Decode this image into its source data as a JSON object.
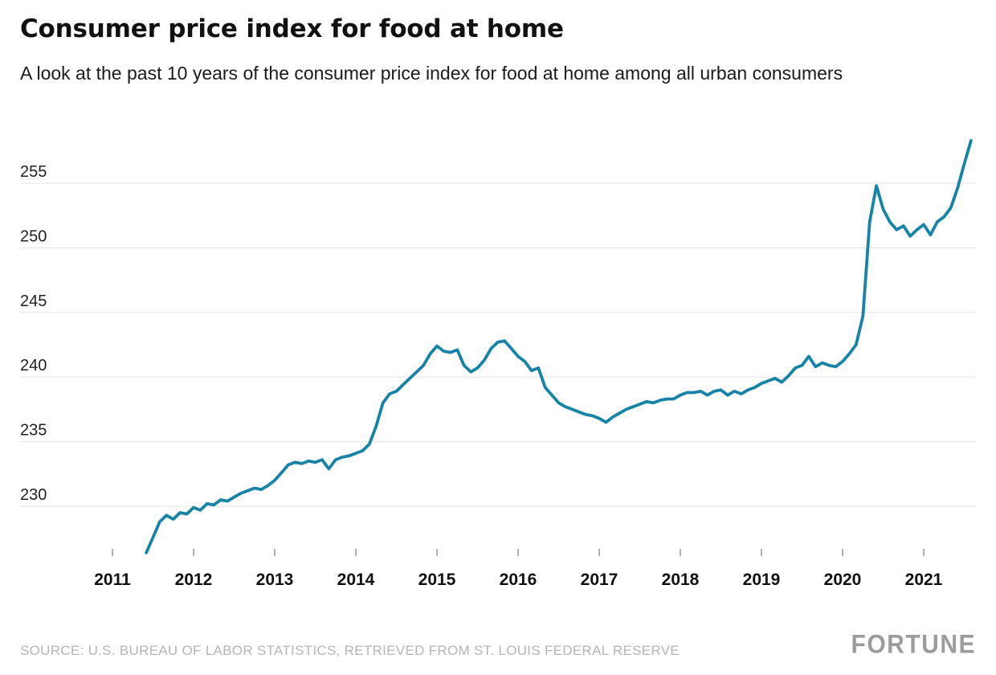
{
  "header": {
    "title": "Consumer price index for food at home",
    "subtitle": "A look at the past 10 years of the consumer price index for food at home among all urban consumers"
  },
  "footer": {
    "source": "SOURCE: U.S. BUREAU OF LABOR STATISTICS, RETRIEVED FROM ST. LOUIS FEDERAL RESERVE",
    "brand": "FORTUNE"
  },
  "chart_data": {
    "type": "line",
    "title": "Consumer price index for food at home",
    "subtitle": "A look at the past 10 years of the consumer price index for food at home among all urban consumers",
    "interval": "monthly",
    "grid": true,
    "legend_position": "none",
    "line_color": "#1784a7",
    "x_ticks": [
      2011,
      2012,
      2013,
      2014,
      2015,
      2016,
      2017,
      2018,
      2019,
      2020,
      2021
    ],
    "y_ticks": [
      230,
      235,
      240,
      245,
      250,
      255
    ],
    "ylim": [
      226,
      259
    ],
    "xlim": [
      2011,
      2021.75
    ],
    "series": [
      {
        "name": "CPI for food at home, all urban consumers",
        "start_month": "2011-06",
        "values": [
          226.4,
          227.6,
          228.8,
          229.3,
          229.0,
          229.5,
          229.4,
          229.9,
          229.7,
          230.2,
          230.1,
          230.5,
          230.4,
          230.7,
          231.0,
          231.2,
          231.4,
          231.3,
          231.6,
          232.0,
          232.6,
          233.2,
          233.4,
          233.3,
          233.5,
          233.4,
          233.6,
          232.9,
          233.6,
          233.8,
          233.9,
          234.1,
          234.3,
          234.8,
          236.2,
          238.0,
          238.7,
          238.9,
          239.4,
          239.9,
          240.4,
          240.9,
          241.8,
          242.4,
          242.0,
          241.9,
          242.1,
          240.9,
          240.4,
          240.7,
          241.3,
          242.2,
          242.7,
          242.8,
          242.2,
          241.6,
          241.2,
          240.5,
          240.7,
          239.2,
          238.6,
          238.0,
          237.7,
          237.5,
          237.3,
          237.1,
          237.0,
          236.8,
          236.5,
          236.9,
          237.2,
          237.5,
          237.7,
          237.9,
          238.1,
          238.0,
          238.2,
          238.3,
          238.3,
          238.6,
          238.8,
          238.8,
          238.9,
          238.6,
          238.9,
          239.0,
          238.6,
          238.9,
          238.7,
          239.0,
          239.2,
          239.5,
          239.7,
          239.9,
          239.6,
          240.1,
          240.7,
          240.9,
          241.6,
          240.8,
          241.1,
          240.9,
          240.8,
          241.2,
          241.8,
          242.5,
          244.7,
          252.0,
          254.8,
          253.0,
          252.0,
          251.4,
          251.7,
          250.9,
          251.4,
          251.8,
          251.0,
          252.0,
          252.4,
          253.1,
          254.6,
          256.5,
          258.3
        ]
      }
    ]
  }
}
